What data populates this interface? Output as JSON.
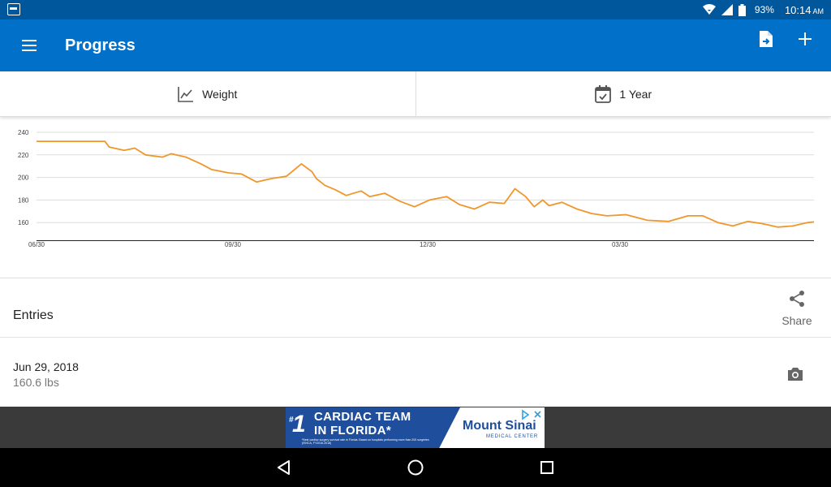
{
  "status_bar": {
    "battery": "93%",
    "time": "10:14",
    "ampm": "AM",
    "icons": [
      "app-notification-icon",
      "wifi-icon",
      "signal-icon",
      "battery-icon"
    ]
  },
  "app_bar": {
    "title": "Progress",
    "menu_icon": "hamburger-menu-icon",
    "actions": [
      "export-document-icon",
      "add-icon"
    ],
    "color": "#0070C9",
    "status_color": "#01579B"
  },
  "selectors": {
    "metric": {
      "label": "Weight",
      "icon": "line-chart-icon"
    },
    "range": {
      "label": "1 Year",
      "icon": "calendar-check-icon"
    }
  },
  "chart_data": {
    "type": "line",
    "title": "",
    "xlabel": "",
    "ylabel": "",
    "x_tick_labels": [
      "06/30",
      "09/30",
      "12/30",
      "03/30"
    ],
    "y_tick_labels": [
      "240",
      "220",
      "200",
      "180",
      "160"
    ],
    "ylim": [
      150,
      240
    ],
    "grid": true,
    "legend": "none",
    "line_color": "#F0962A",
    "series": [
      {
        "x": [
          "06/30",
          "07/20",
          "08/01",
          "08/03",
          "08/10",
          "08/15",
          "08/20",
          "08/28",
          "09/01",
          "09/08",
          "09/15",
          "09/20",
          "09/28",
          "10/04",
          "10/11",
          "10/18",
          "10/25",
          "11/01",
          "11/06",
          "11/08",
          "11/12",
          "11/17",
          "11/22",
          "11/29",
          "12/03",
          "12/10",
          "12/17",
          "12/24",
          "12/31",
          "01/08",
          "01/14",
          "01/21",
          "01/28",
          "02/04",
          "02/09",
          "02/14",
          "02/18",
          "02/22",
          "02/25",
          "03/03",
          "03/10",
          "03/17",
          "03/24",
          "04/02",
          "04/12",
          "04/22",
          "05/01",
          "05/08",
          "05/15",
          "05/22",
          "05/29",
          "06/05",
          "06/12",
          "06/19",
          "06/26",
          "06/29"
        ],
        "y": [
          232,
          232,
          232,
          227,
          224,
          226,
          220,
          218,
          221,
          218,
          212,
          207,
          204,
          203,
          196,
          199,
          201,
          212,
          205,
          199,
          193,
          189,
          184,
          188,
          183,
          186,
          179,
          174,
          180,
          183,
          176,
          172,
          178,
          177,
          190,
          183,
          174,
          180,
          175,
          178,
          172,
          168,
          166,
          167,
          162,
          161,
          166,
          166,
          160,
          157,
          161,
          159,
          156,
          157,
          160,
          160.6
        ]
      }
    ]
  },
  "entries": {
    "title": "Entries",
    "share_label": "Share",
    "items": [
      {
        "date": "Jun 29, 2018",
        "value": "160.6 lbs"
      }
    ]
  },
  "ad": {
    "number": "1",
    "number_mark": "#",
    "headline_1": "CARDIAC TEAM",
    "headline_2": "IN FLORIDA*",
    "fine_print": "*Best cardiac surgery survival rate in Florida. Based on hospitals performing more than 200 surgeries (ISHCA, FY2016-2018)",
    "brand": "Mount Sinai",
    "brand_sub": "MEDICAL CENTER"
  }
}
